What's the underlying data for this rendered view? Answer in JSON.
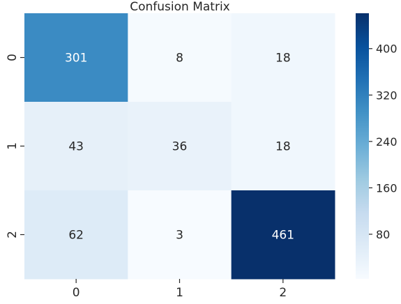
{
  "chart_data": {
    "type": "heatmap",
    "title": "Confusion Matrix",
    "xlabel": "",
    "ylabel": "",
    "x_categories": [
      "0",
      "1",
      "2"
    ],
    "y_categories": [
      "0",
      "1",
      "2"
    ],
    "values": [
      [
        301,
        8,
        18
      ],
      [
        43,
        36,
        18
      ],
      [
        62,
        3,
        461
      ]
    ],
    "colorbar": {
      "min": 3,
      "max": 461,
      "ticks": [
        "80",
        "160",
        "240",
        "320",
        "400"
      ],
      "colormap": "Blues"
    },
    "colors": {
      "low": "#f7fbff",
      "high": "#08306b",
      "dark_text": "#262626",
      "light_text": "#ffffff"
    }
  }
}
